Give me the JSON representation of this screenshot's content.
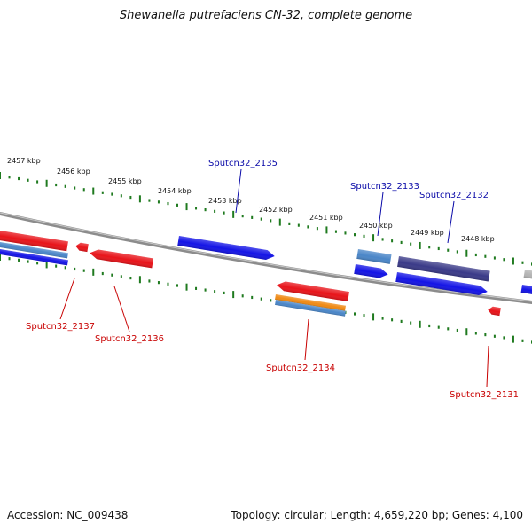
{
  "title": "Shewanella putrefaciens CN-32, complete genome",
  "footer": {
    "accession": "Accession: NC_009438",
    "summary": "Topology: circular; Length: 4,659,220 bp; Genes: 4,100"
  },
  "colors": {
    "background": "#ffffff",
    "forward_label": "#0a0aa8",
    "reverse_label": "#c80000",
    "tick": "#1f7a1f",
    "backbone": "#8c8c8c"
  },
  "scale": {
    "unit": "kbp",
    "labels": [
      "2457 kbp",
      "2456 kbp",
      "2455 kbp",
      "2454 kbp",
      "2453 kbp",
      "2452 kbp",
      "2451 kbp",
      "2450 kbp",
      "2449 kbp",
      "2448 kbp"
    ]
  },
  "labels": {
    "forward": [
      "Sputcn32_2135",
      "Sputcn32_2133",
      "Sputcn32_2132"
    ],
    "reverse": [
      "Sputcn32_2137",
      "Sputcn32_2136",
      "Sputcn32_2134",
      "Sputcn32_2131"
    ]
  },
  "features": [
    {
      "name": "red-gene-1",
      "color": "#e8141a",
      "strand": "reverse"
    },
    {
      "name": "steelblue-gene-1",
      "color": "#4a86c8",
      "strand": "reverse"
    },
    {
      "name": "blue-gene-1",
      "color": "#1414e6",
      "strand": "reverse"
    },
    {
      "name": "red-gene-2",
      "color": "#e8141a",
      "strand": "reverse"
    },
    {
      "name": "red-gene-3",
      "color": "#e8141a",
      "strand": "reverse"
    },
    {
      "name": "blue-gene-2",
      "color": "#1414e6",
      "strand": "forward"
    },
    {
      "name": "red-gene-4",
      "color": "#e8141a",
      "strand": "reverse"
    },
    {
      "name": "orange-gene-1",
      "color": "#f08a14",
      "strand": "reverse"
    },
    {
      "name": "steelblue-gene-2",
      "color": "#4a86c8",
      "strand": "reverse"
    },
    {
      "name": "steelblue-gene-3",
      "color": "#4a86c8",
      "strand": "forward"
    },
    {
      "name": "blue-gene-3",
      "color": "#1414e6",
      "strand": "forward"
    },
    {
      "name": "purple-gene-1",
      "color": "#3a3a88",
      "strand": "forward"
    },
    {
      "name": "blue-gene-4",
      "color": "#1414e6",
      "strand": "forward"
    },
    {
      "name": "red-gene-5",
      "color": "#e8141a",
      "strand": "reverse"
    },
    {
      "name": "gray-gene-1",
      "color": "#b4b4b4",
      "strand": "forward"
    },
    {
      "name": "blue-gene-5",
      "color": "#1414e6",
      "strand": "forward"
    }
  ]
}
